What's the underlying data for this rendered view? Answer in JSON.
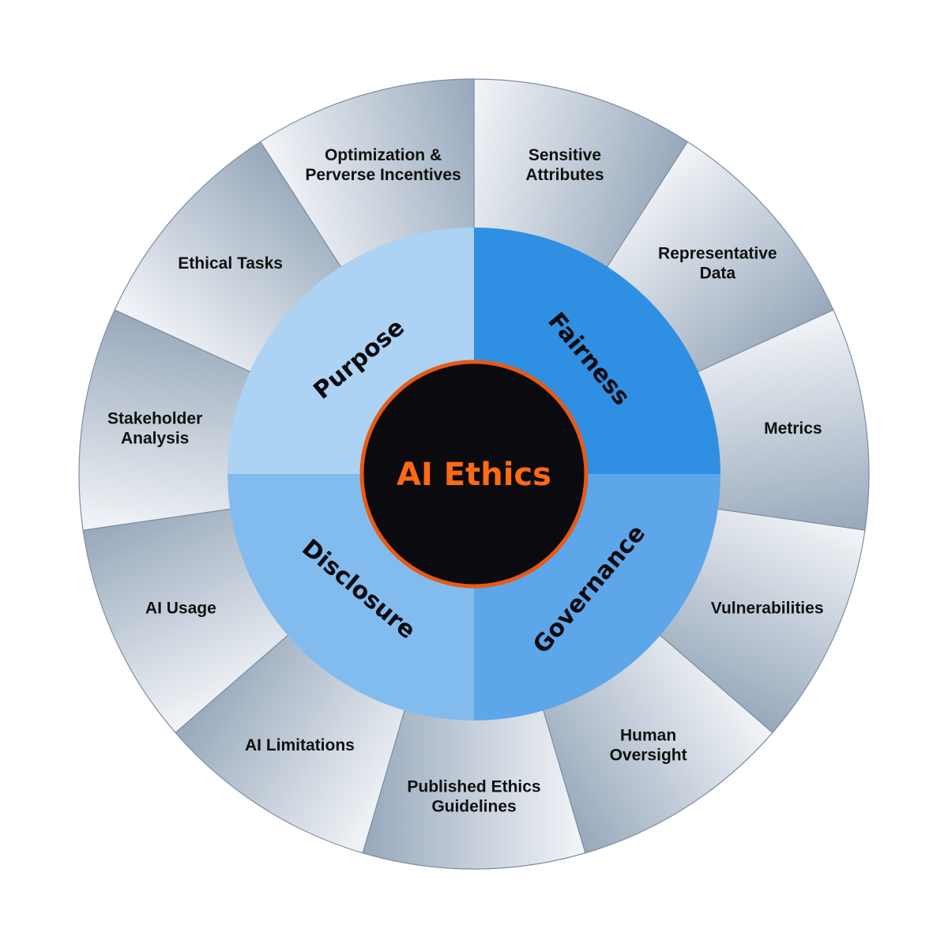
{
  "center": {
    "title": "AI Ethics",
    "fill": "#0b0b0f",
    "ring": "#e85a14",
    "text_color": "#ff6a14"
  },
  "quadrants": [
    {
      "label": "Purpose",
      "color": "#acd2f4"
    },
    {
      "label": "Fairness",
      "color": "#2f8fe2"
    },
    {
      "label": "Governance",
      "color": "#5ea6ea"
    },
    {
      "label": "Disclosure",
      "color": "#82bcef"
    }
  ],
  "segments": [
    {
      "lines": [
        "Sensitive",
        "Attributes"
      ]
    },
    {
      "lines": [
        "Representative",
        "Data"
      ]
    },
    {
      "lines": [
        "Metrics"
      ]
    },
    {
      "lines": [
        "Vulnerabilities"
      ]
    },
    {
      "lines": [
        "Human",
        "Oversight"
      ]
    },
    {
      "lines": [
        "Published Ethics",
        "Guidelines"
      ]
    },
    {
      "lines": [
        "AI Limitations"
      ]
    },
    {
      "lines": [
        "AI Usage"
      ]
    },
    {
      "lines": [
        "Stakeholder",
        "Analysis"
      ]
    },
    {
      "lines": [
        "Ethical Tasks"
      ]
    },
    {
      "lines": [
        "Optimization &",
        "Perverse Incentives"
      ]
    }
  ],
  "colors": {
    "segment_dark": "#97a8bb",
    "segment_light": "#f3f5f8",
    "segment_border": "#7d8ea3"
  }
}
